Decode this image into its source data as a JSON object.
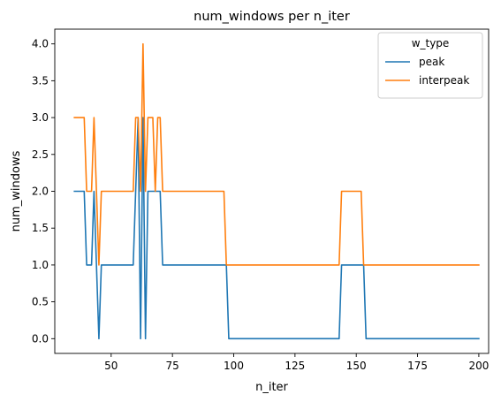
{
  "chart_data": {
    "type": "line",
    "title": "num_windows per n_iter",
    "xlabel": "n_iter",
    "ylabel": "num_windows",
    "xlim": [
      27,
      204
    ],
    "ylim": [
      -0.2,
      4.2
    ],
    "xticks": [
      50,
      75,
      100,
      125,
      150,
      175,
      200
    ],
    "yticks": [
      0.0,
      0.5,
      1.0,
      1.5,
      2.0,
      2.5,
      3.0,
      3.5,
      4.0
    ],
    "grid": false,
    "legend": {
      "title": "w_type",
      "placement": "top-right"
    },
    "series": [
      {
        "name": "peak",
        "color": "#1f77b4",
        "points": [
          [
            35,
            2
          ],
          [
            39,
            2
          ],
          [
            40,
            1
          ],
          [
            42,
            1
          ],
          [
            43,
            2
          ],
          [
            45,
            0
          ],
          [
            46,
            1
          ],
          [
            59,
            1
          ],
          [
            60,
            2
          ],
          [
            61,
            3
          ],
          [
            62,
            0
          ],
          [
            63,
            3
          ],
          [
            64,
            0
          ],
          [
            65,
            2
          ],
          [
            70,
            2
          ],
          [
            71,
            1
          ],
          [
            97,
            1
          ],
          [
            98,
            0
          ],
          [
            143,
            0
          ],
          [
            144,
            1
          ],
          [
            153,
            1
          ],
          [
            154,
            0
          ],
          [
            200,
            0
          ]
        ]
      },
      {
        "name": "interpeak",
        "color": "#ff7f0e",
        "points": [
          [
            35,
            3
          ],
          [
            39,
            3
          ],
          [
            40,
            2
          ],
          [
            42,
            2
          ],
          [
            43,
            3
          ],
          [
            45,
            1
          ],
          [
            46,
            2
          ],
          [
            59,
            2
          ],
          [
            60,
            3
          ],
          [
            61,
            3
          ],
          [
            62,
            2
          ],
          [
            63,
            4
          ],
          [
            64,
            2
          ],
          [
            65,
            3
          ],
          [
            67,
            3
          ],
          [
            68,
            2
          ],
          [
            69,
            3
          ],
          [
            70,
            3
          ],
          [
            71,
            2
          ],
          [
            96,
            2
          ],
          [
            97,
            1
          ],
          [
            143,
            1
          ],
          [
            144,
            2
          ],
          [
            152,
            2
          ],
          [
            153,
            1
          ],
          [
            200,
            1
          ]
        ]
      }
    ]
  }
}
